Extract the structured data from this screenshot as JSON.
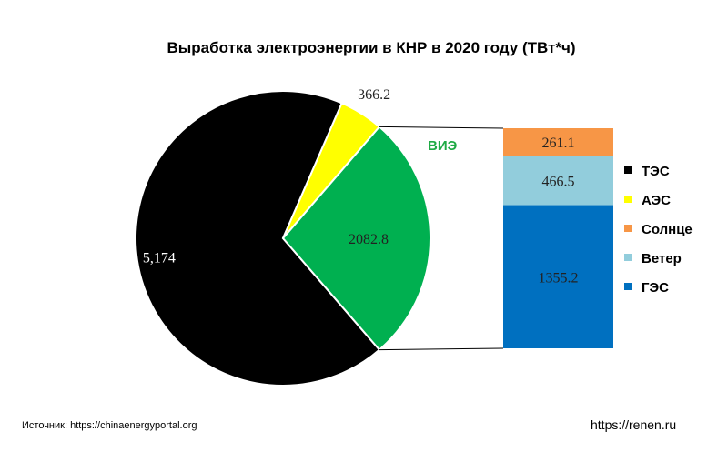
{
  "chart_data": {
    "type": "pie",
    "title": "Выработка электроэнергии в КНР в 2020 году (ТВт*ч)",
    "pie": {
      "slices": [
        {
          "name": "ТЭС",
          "value": 5174,
          "label": "5,174",
          "color": "#000000",
          "label_color": "#ffffff"
        },
        {
          "name": "АЭС",
          "value": 366.2,
          "label": "366.2",
          "color": "#ffff00",
          "label_color": "#222222"
        },
        {
          "name": "ВИЭ",
          "value": 2082.8,
          "label": "2082.8",
          "color": "#00b050",
          "label_color": "#222222"
        }
      ]
    },
    "breakdown": {
      "type": "stacked_bar",
      "title": "ВИЭ",
      "title_color": "#1faa45",
      "total": 2082.8,
      "segments": [
        {
          "name": "ГЭС",
          "value": 1355.2,
          "label": "1355.2",
          "color": "#0070c0"
        },
        {
          "name": "Ветер",
          "value": 466.5,
          "label": "466.5",
          "color": "#92cddc"
        },
        {
          "name": "Солнце",
          "value": 261.1,
          "label": "261.1",
          "color": "#f79646"
        }
      ]
    },
    "legend": {
      "position": "right",
      "items": [
        {
          "name": "ТЭС",
          "color": "#000000"
        },
        {
          "name": "АЭС",
          "color": "#ffff00"
        },
        {
          "name": "Солнце",
          "color": "#f79646"
        },
        {
          "name": "Ветер",
          "color": "#92cddc"
        },
        {
          "name": "ГЭС",
          "color": "#0070c0"
        }
      ]
    }
  },
  "footer": {
    "source": "Источник: https://chinaenergyportal.org",
    "site": "https://renen.ru"
  }
}
